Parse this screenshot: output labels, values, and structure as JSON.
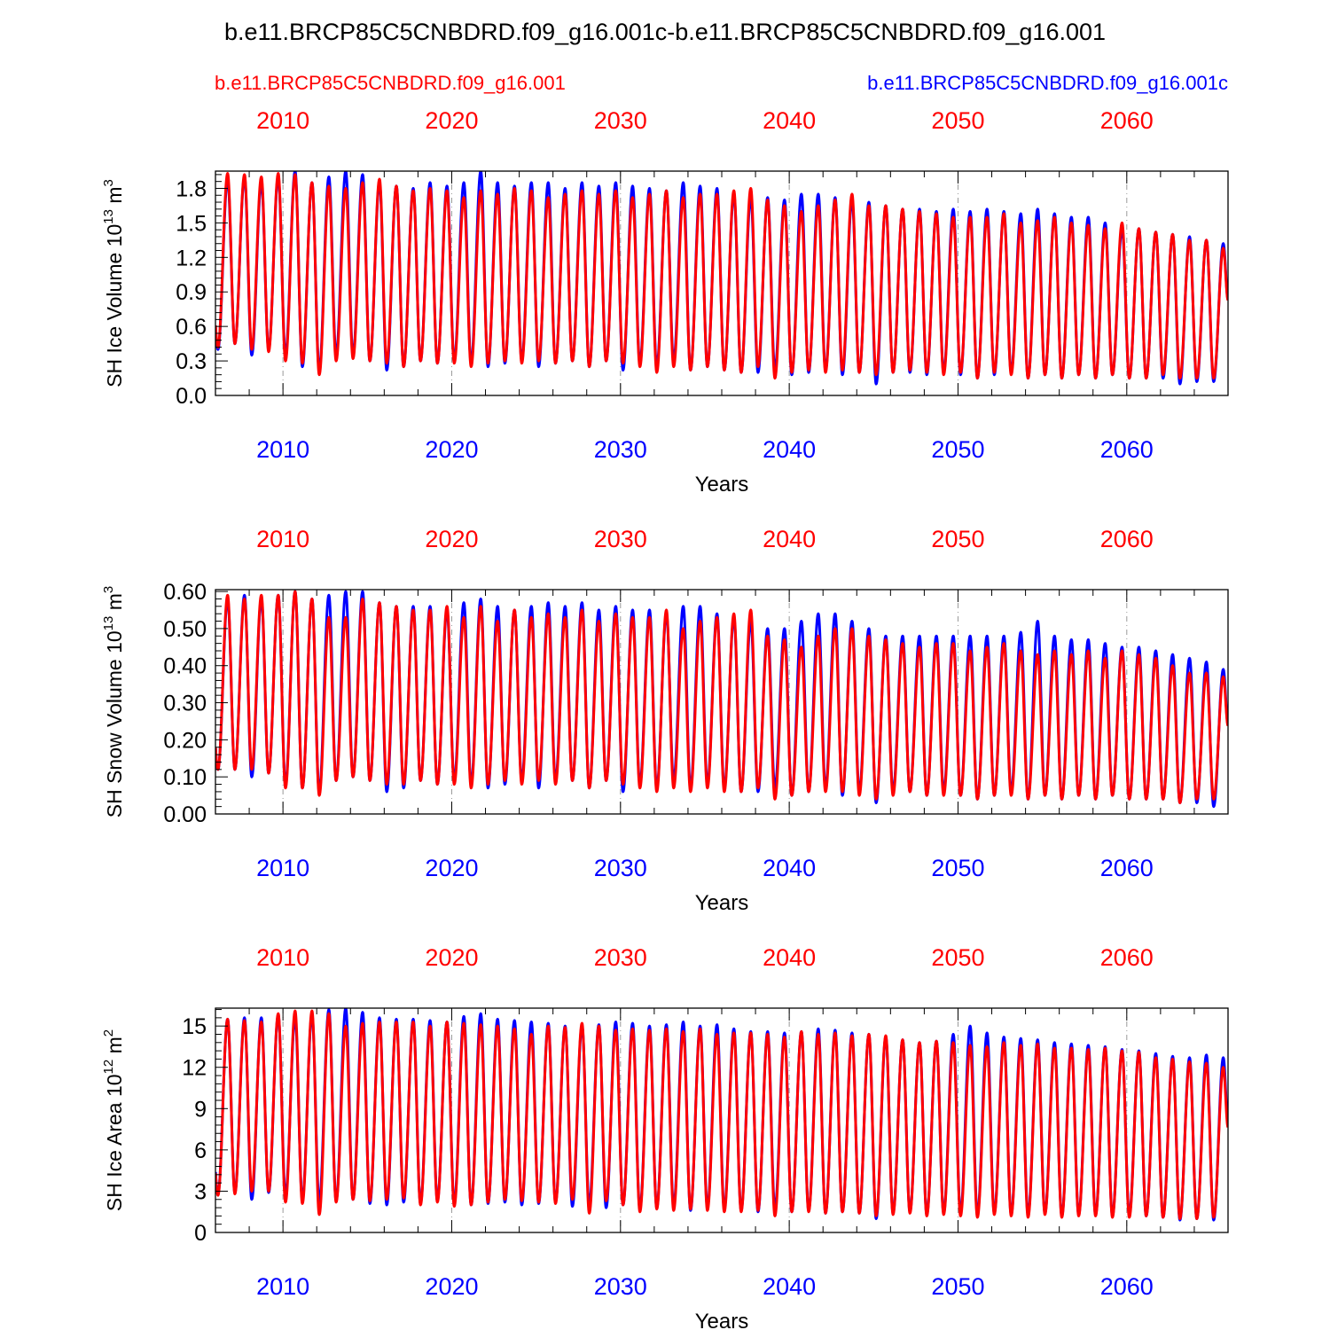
{
  "figure": {
    "title": "b.e11.BRCP85C5CNBDRD.f09_g16.001c-b.e11.BRCP85C5CNBDRD.f09_g16.001",
    "legend": {
      "red_case": "b.e11.BRCP85C5CNBDRD.f09_g16.001",
      "blue_case": "b.e11.BRCP85C5CNBDRD.f09_g16.001c"
    },
    "colors": {
      "red": "#ff0000",
      "blue": "#0000ff",
      "frame": "#000000",
      "grid": "#999999"
    }
  },
  "chart_data": [
    {
      "type": "line",
      "title": "",
      "ylabel": "SH Ice Volume 10",
      "ylabel_exp": "13",
      "ylabel_unit": " m",
      "ylabel_unit_exp": "3",
      "xlabel": "Years",
      "xlim": [
        2006,
        2066
      ],
      "ylim": [
        0.0,
        1.95
      ],
      "yticks": [
        0.0,
        0.3,
        0.6,
        0.9,
        1.2,
        1.5,
        1.8
      ],
      "ytick_labels": [
        "0.0",
        "0.3",
        "0.6",
        "0.9",
        "1.2",
        "1.5",
        "1.8"
      ],
      "xticks": [
        2010,
        2020,
        2030,
        2040,
        2050,
        2060
      ],
      "xtick_labels": [
        "2010",
        "2020",
        "2030",
        "2040",
        "2050",
        "2060"
      ],
      "series": [
        {
          "name": "b.e11.BRCP85C5CNBDRD.f09_g16.001c",
          "color": "blue",
          "annual_max": [
            1.88,
            1.9,
            1.85,
            1.9,
            1.95,
            1.85,
            1.9,
            1.95,
            1.92,
            1.85,
            1.82,
            1.8,
            1.85,
            1.82,
            1.85,
            1.95,
            1.85,
            1.82,
            1.85,
            1.85,
            1.8,
            1.85,
            1.82,
            1.85,
            1.82,
            1.8,
            1.78,
            1.85,
            1.82,
            1.8,
            1.75,
            1.72,
            1.72,
            1.7,
            1.75,
            1.75,
            1.72,
            1.7,
            1.68,
            1.65,
            1.62,
            1.62,
            1.6,
            1.62,
            1.6,
            1.62,
            1.6,
            1.58,
            1.62,
            1.58,
            1.55,
            1.55,
            1.5,
            1.45,
            1.45,
            1.42,
            1.4,
            1.38,
            1.35,
            1.32
          ],
          "annual_min": [
            0.4,
            0.45,
            0.35,
            0.4,
            0.35,
            0.25,
            0.22,
            0.35,
            0.35,
            0.3,
            0.22,
            0.25,
            0.3,
            0.28,
            0.3,
            0.28,
            0.25,
            0.28,
            0.3,
            0.25,
            0.28,
            0.3,
            0.25,
            0.3,
            0.22,
            0.28,
            0.25,
            0.3,
            0.22,
            0.25,
            0.22,
            0.2,
            0.2,
            0.22,
            0.18,
            0.2,
            0.22,
            0.18,
            0.2,
            0.1,
            0.2,
            0.2,
            0.18,
            0.2,
            0.18,
            0.15,
            0.18,
            0.2,
            0.15,
            0.18,
            0.15,
            0.18,
            0.15,
            0.18,
            0.15,
            0.15,
            0.15,
            0.1,
            0.12,
            0.12
          ]
        },
        {
          "name": "b.e11.BRCP85C5CNBDRD.f09_g16.001",
          "color": "red",
          "annual_max": [
            1.93,
            1.92,
            1.9,
            1.93,
            1.92,
            1.85,
            1.82,
            1.8,
            1.85,
            1.88,
            1.82,
            1.78,
            1.8,
            1.78,
            1.72,
            1.78,
            1.75,
            1.8,
            1.78,
            1.72,
            1.75,
            1.78,
            1.75,
            1.78,
            1.72,
            1.75,
            1.78,
            1.72,
            1.75,
            1.75,
            1.78,
            1.8,
            1.7,
            1.65,
            1.6,
            1.65,
            1.7,
            1.75,
            1.65,
            1.65,
            1.62,
            1.6,
            1.58,
            1.55,
            1.55,
            1.55,
            1.58,
            1.5,
            1.52,
            1.55,
            1.5,
            1.48,
            1.45,
            1.5,
            1.45,
            1.42,
            1.4,
            1.35,
            1.35,
            1.28
          ],
          "annual_min": [
            0.42,
            0.45,
            0.4,
            0.38,
            0.3,
            0.28,
            0.18,
            0.3,
            0.32,
            0.3,
            0.28,
            0.25,
            0.3,
            0.28,
            0.28,
            0.25,
            0.28,
            0.3,
            0.28,
            0.3,
            0.28,
            0.3,
            0.25,
            0.3,
            0.28,
            0.25,
            0.2,
            0.25,
            0.22,
            0.25,
            0.22,
            0.2,
            0.25,
            0.15,
            0.2,
            0.22,
            0.2,
            0.22,
            0.2,
            0.18,
            0.2,
            0.22,
            0.2,
            0.18,
            0.2,
            0.15,
            0.2,
            0.18,
            0.15,
            0.18,
            0.15,
            0.18,
            0.15,
            0.18,
            0.15,
            0.15,
            0.18,
            0.15,
            0.15,
            0.15
          ]
        }
      ]
    },
    {
      "type": "line",
      "title": "",
      "ylabel": "SH Snow Volume 10",
      "ylabel_exp": "13",
      "ylabel_unit": " m",
      "ylabel_unit_exp": "3",
      "xlabel": "Years",
      "xlim": [
        2006,
        2066
      ],
      "ylim": [
        0.0,
        0.605
      ],
      "yticks": [
        0.0,
        0.1,
        0.2,
        0.3,
        0.4,
        0.5,
        0.6
      ],
      "ytick_labels": [
        "0.00",
        "0.10",
        "0.20",
        "0.30",
        "0.40",
        "0.50",
        "0.60"
      ],
      "xticks": [
        2010,
        2020,
        2030,
        2040,
        2050,
        2060
      ],
      "xtick_labels": [
        "2010",
        "2020",
        "2030",
        "2040",
        "2050",
        "2060"
      ],
      "series": [
        {
          "name": "b.e11.BRCP85C5CNBDRD.f09_g16.001c",
          "color": "blue",
          "annual_max": [
            0.58,
            0.59,
            0.58,
            0.59,
            0.6,
            0.58,
            0.59,
            0.6,
            0.6,
            0.57,
            0.56,
            0.56,
            0.56,
            0.55,
            0.57,
            0.58,
            0.56,
            0.55,
            0.56,
            0.57,
            0.56,
            0.57,
            0.55,
            0.56,
            0.55,
            0.55,
            0.54,
            0.56,
            0.56,
            0.54,
            0.53,
            0.52,
            0.5,
            0.5,
            0.52,
            0.54,
            0.54,
            0.52,
            0.5,
            0.48,
            0.48,
            0.48,
            0.48,
            0.48,
            0.48,
            0.48,
            0.48,
            0.49,
            0.52,
            0.48,
            0.47,
            0.47,
            0.46,
            0.45,
            0.45,
            0.44,
            0.43,
            0.42,
            0.41,
            0.39
          ],
          "annual_min": [
            0.12,
            0.12,
            0.1,
            0.11,
            0.08,
            0.07,
            0.06,
            0.09,
            0.1,
            0.09,
            0.06,
            0.07,
            0.09,
            0.08,
            0.09,
            0.08,
            0.07,
            0.08,
            0.09,
            0.07,
            0.09,
            0.09,
            0.07,
            0.09,
            0.06,
            0.08,
            0.07,
            0.09,
            0.07,
            0.08,
            0.07,
            0.06,
            0.06,
            0.07,
            0.05,
            0.06,
            0.07,
            0.05,
            0.06,
            0.03,
            0.06,
            0.06,
            0.05,
            0.06,
            0.05,
            0.04,
            0.05,
            0.06,
            0.04,
            0.05,
            0.04,
            0.05,
            0.04,
            0.05,
            0.04,
            0.04,
            0.04,
            0.03,
            0.03,
            0.02
          ]
        },
        {
          "name": "b.e11.BRCP85C5CNBDRD.f09_g16.001",
          "color": "red",
          "annual_max": [
            0.59,
            0.58,
            0.59,
            0.59,
            0.6,
            0.58,
            0.53,
            0.53,
            0.58,
            0.57,
            0.56,
            0.55,
            0.55,
            0.56,
            0.53,
            0.56,
            0.52,
            0.55,
            0.53,
            0.54,
            0.53,
            0.55,
            0.52,
            0.54,
            0.53,
            0.53,
            0.55,
            0.5,
            0.52,
            0.53,
            0.54,
            0.55,
            0.48,
            0.47,
            0.45,
            0.48,
            0.5,
            0.5,
            0.48,
            0.47,
            0.46,
            0.45,
            0.46,
            0.46,
            0.44,
            0.45,
            0.46,
            0.44,
            0.43,
            0.44,
            0.43,
            0.44,
            0.42,
            0.44,
            0.43,
            0.42,
            0.4,
            0.38,
            0.38,
            0.37
          ],
          "annual_min": [
            0.12,
            0.12,
            0.12,
            0.11,
            0.07,
            0.07,
            0.05,
            0.09,
            0.1,
            0.09,
            0.08,
            0.08,
            0.09,
            0.08,
            0.08,
            0.07,
            0.08,
            0.09,
            0.08,
            0.09,
            0.08,
            0.09,
            0.07,
            0.09,
            0.08,
            0.07,
            0.06,
            0.07,
            0.06,
            0.07,
            0.06,
            0.06,
            0.07,
            0.04,
            0.05,
            0.06,
            0.06,
            0.06,
            0.05,
            0.04,
            0.05,
            0.06,
            0.05,
            0.05,
            0.05,
            0.04,
            0.05,
            0.05,
            0.04,
            0.05,
            0.04,
            0.05,
            0.04,
            0.05,
            0.04,
            0.04,
            0.04,
            0.03,
            0.04,
            0.04
          ]
        }
      ]
    },
    {
      "type": "line",
      "title": "",
      "ylabel": "SH Ice Area 10",
      "ylabel_exp": "12",
      "ylabel_unit": " m",
      "ylabel_unit_exp": "2",
      "xlabel": "Years",
      "xlim": [
        2006,
        2066
      ],
      "ylim": [
        0,
        16.3
      ],
      "yticks": [
        0,
        3,
        6,
        9,
        12,
        15
      ],
      "ytick_labels": [
        "0",
        "3",
        "6",
        "9",
        "12",
        "15"
      ],
      "xticks": [
        2010,
        2020,
        2030,
        2040,
        2050,
        2060
      ],
      "xtick_labels": [
        "2010",
        "2020",
        "2030",
        "2040",
        "2050",
        "2060"
      ],
      "series": [
        {
          "name": "b.e11.BRCP85C5CNBDRD.f09_g16.001c",
          "color": "blue",
          "annual_max": [
            15.5,
            15.6,
            15.6,
            15.8,
            15.6,
            15.8,
            16.2,
            16.3,
            16.0,
            15.6,
            15.5,
            15.5,
            15.4,
            15.3,
            15.7,
            15.9,
            15.5,
            15.4,
            15.3,
            15.2,
            15.0,
            15.0,
            15.1,
            15.3,
            15.2,
            15.0,
            15.1,
            15.3,
            15.0,
            15.1,
            14.8,
            14.6,
            14.6,
            14.5,
            14.6,
            14.8,
            14.7,
            14.5,
            14.4,
            14.2,
            14.0,
            13.8,
            13.9,
            14.4,
            15.0,
            14.5,
            14.2,
            14.1,
            14.0,
            13.8,
            13.7,
            13.6,
            13.5,
            13.3,
            13.2,
            13.0,
            12.8,
            12.7,
            12.9,
            12.7
          ],
          "annual_min": [
            2.8,
            2.9,
            2.4,
            2.9,
            2.7,
            2.4,
            2.2,
            2.3,
            2.4,
            2.1,
            2.0,
            2.2,
            2.1,
            2.3,
            2.1,
            2.0,
            2.1,
            2.2,
            2.0,
            2.1,
            2.2,
            1.9,
            2.0,
            1.8,
            2.0,
            1.7,
            1.8,
            1.9,
            1.6,
            1.8,
            1.7,
            1.6,
            1.5,
            1.7,
            1.5,
            1.6,
            1.4,
            1.5,
            1.4,
            1.0,
            1.4,
            1.5,
            1.3,
            1.4,
            1.4,
            1.3,
            1.4,
            1.3,
            1.3,
            1.4,
            1.2,
            1.3,
            1.3,
            1.2,
            1.3,
            1.2,
            1.1,
            0.9,
            1.0,
            0.9
          ]
        },
        {
          "name": "b.e11.BRCP85C5CNBDRD.f09_g16.001",
          "color": "red",
          "annual_max": [
            15.5,
            15.4,
            15.3,
            15.9,
            16.1,
            16.1,
            15.9,
            15.0,
            15.2,
            15.3,
            15.3,
            15.3,
            15.0,
            15.3,
            15.2,
            15.1,
            15.0,
            14.8,
            14.4,
            15.0,
            14.9,
            15.2,
            15.0,
            14.7,
            14.8,
            14.7,
            14.8,
            14.6,
            14.8,
            14.4,
            14.5,
            14.5,
            14.4,
            14.2,
            14.6,
            14.4,
            14.5,
            14.3,
            14.4,
            14.3,
            14.0,
            13.8,
            13.9,
            13.8,
            13.6,
            13.5,
            13.8,
            13.6,
            13.7,
            13.4,
            13.4,
            13.3,
            13.4,
            13.2,
            13.1,
            12.7,
            12.6,
            12.4,
            12.3,
            12.0
          ],
          "annual_min": [
            2.7,
            2.8,
            3.0,
            3.0,
            2.2,
            2.1,
            1.3,
            2.2,
            2.4,
            2.3,
            2.4,
            2.5,
            2.0,
            2.2,
            1.9,
            2.0,
            2.2,
            2.4,
            2.3,
            2.2,
            2.1,
            2.4,
            1.4,
            2.3,
            2.0,
            1.5,
            1.7,
            1.6,
            1.7,
            1.6,
            1.5,
            1.5,
            1.6,
            1.2,
            1.5,
            1.5,
            1.4,
            1.5,
            1.4,
            1.2,
            1.3,
            1.4,
            1.2,
            1.3,
            1.2,
            1.1,
            1.3,
            1.2,
            1.1,
            1.3,
            1.1,
            1.2,
            1.2,
            1.1,
            1.1,
            1.2,
            1.1,
            1.0,
            1.0,
            1.1
          ]
        }
      ]
    }
  ]
}
